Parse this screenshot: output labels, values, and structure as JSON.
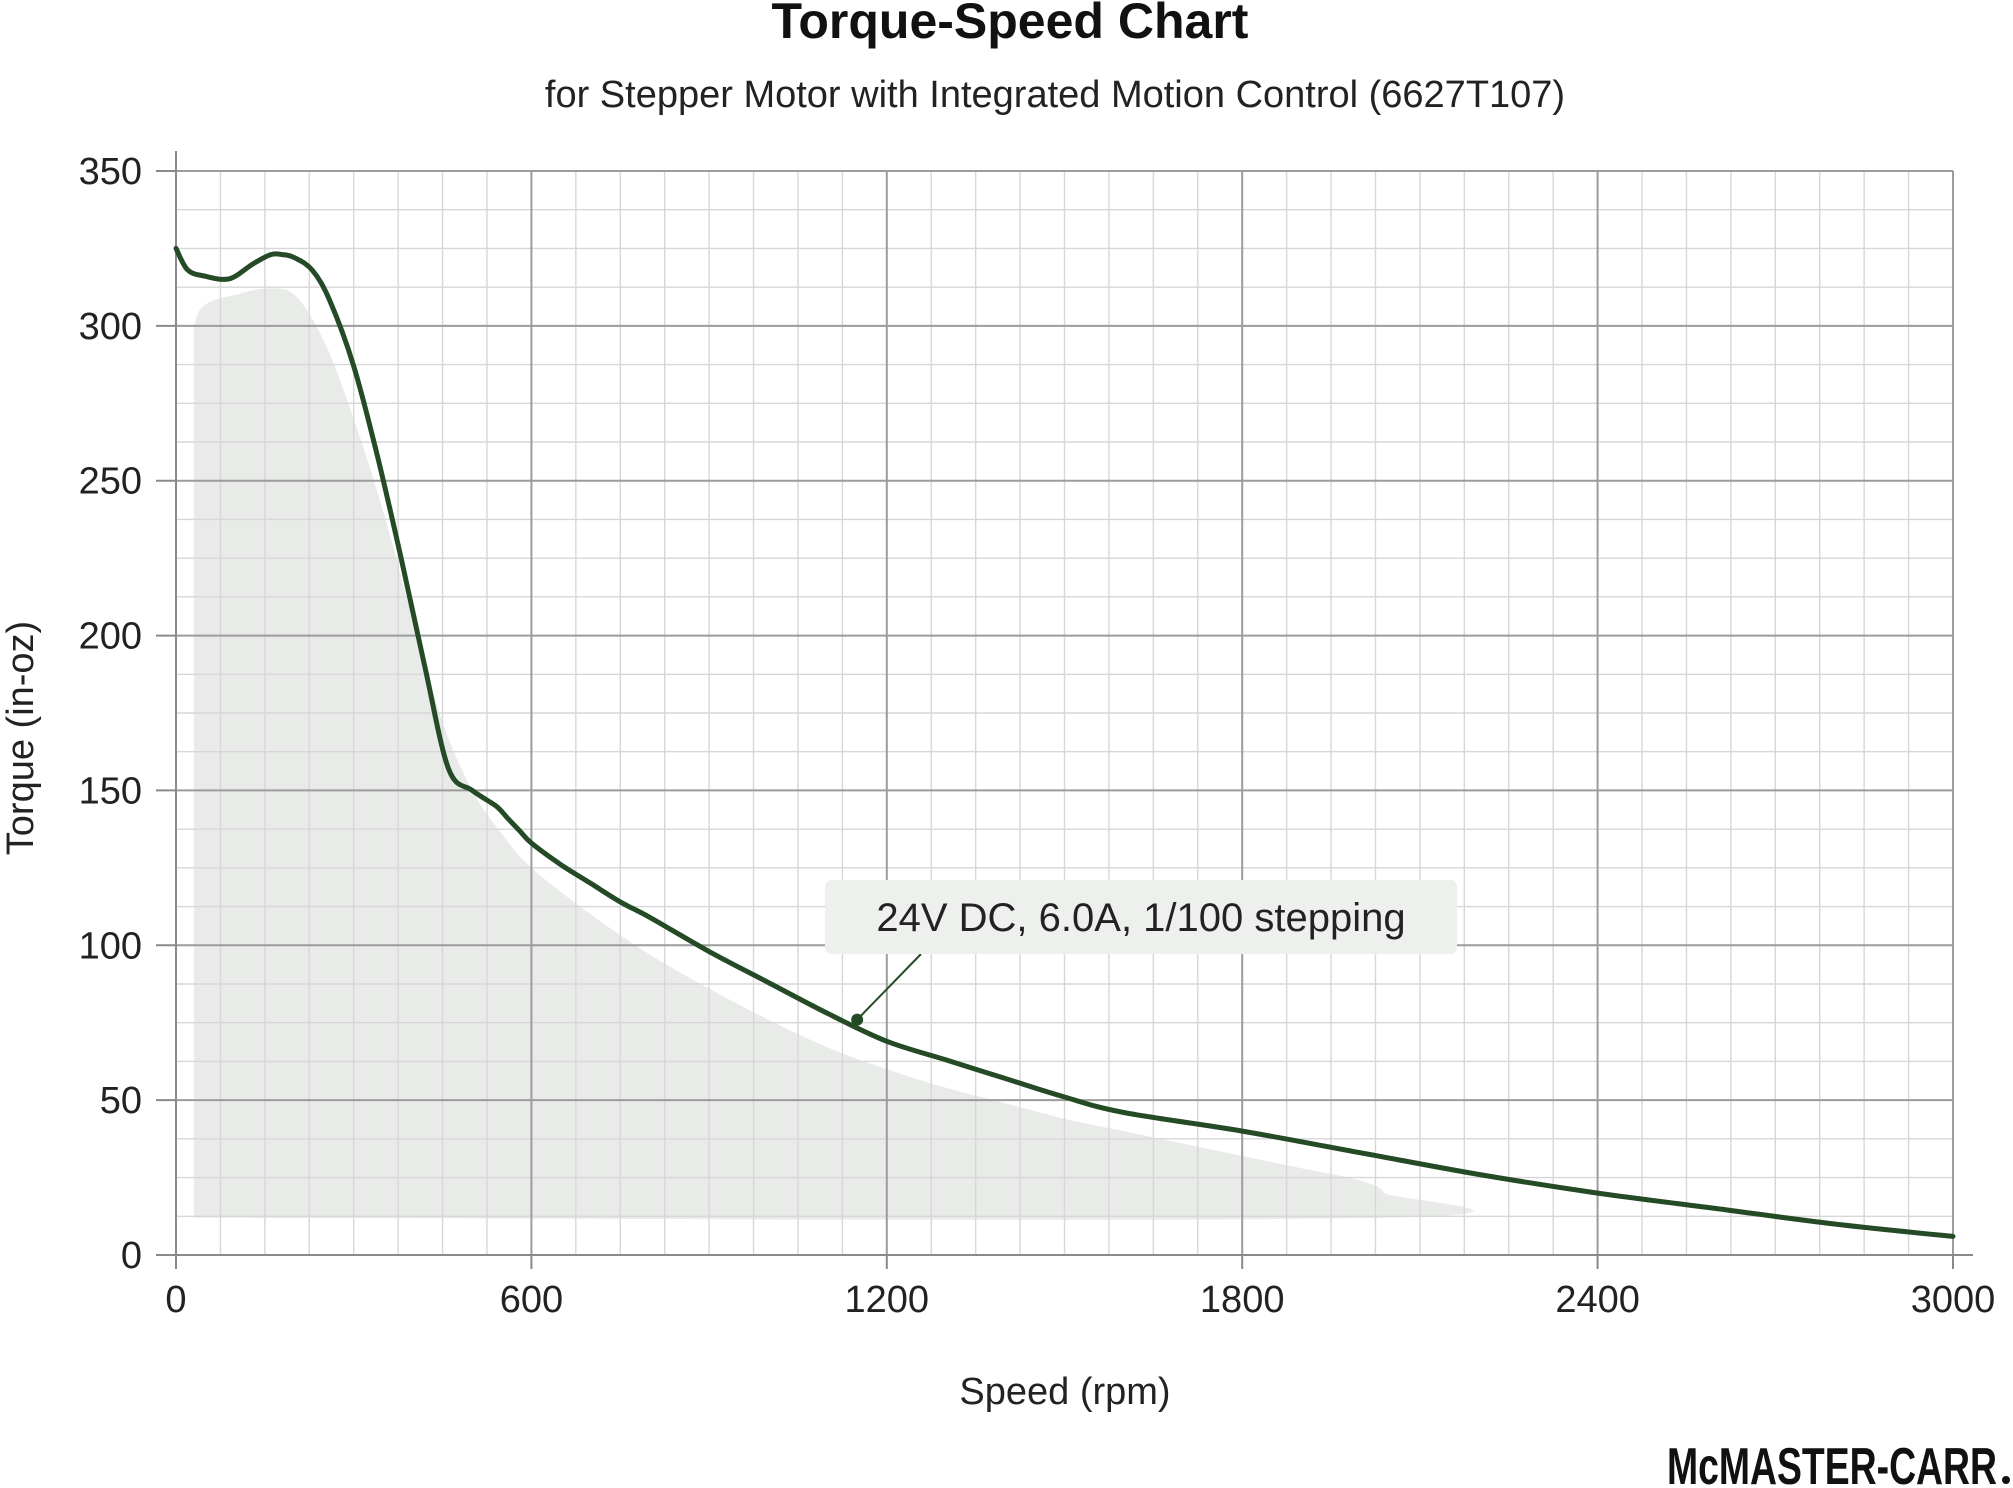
{
  "chart_data": {
    "type": "line",
    "title": "Torque-Speed Chart",
    "subtitle": "for Stepper Motor with Integrated Motion Control (6627T107)",
    "xlabel": "Speed (rpm)",
    "ylabel": "Torque (in-oz)",
    "xlim": [
      0,
      3000
    ],
    "ylim": [
      0,
      350
    ],
    "x_ticks": [
      0,
      600,
      1200,
      1800,
      2400,
      3000
    ],
    "y_ticks": [
      0,
      50,
      100,
      150,
      200,
      250,
      300,
      350
    ],
    "grid": true,
    "series": [
      {
        "name": "24V DC, 6.0A, 1/100 stepping",
        "color": "#244a26",
        "x": [
          0,
          20,
          50,
          80,
          100,
          130,
          160,
          180,
          200,
          230,
          260,
          300,
          340,
          380,
          420,
          460,
          500,
          540,
          560,
          580,
          600,
          650,
          700,
          750,
          800,
          900,
          1000,
          1100,
          1200,
          1300,
          1400,
          1500,
          1600,
          1800,
          2000,
          2200,
          2400,
          2600,
          2800,
          3000
        ],
        "y": [
          325,
          318,
          316,
          315,
          316,
          320,
          323,
          323,
          322,
          318,
          308,
          287,
          258,
          225,
          190,
          157,
          150,
          145,
          141,
          137,
          133,
          126,
          120,
          114,
          109,
          98,
          88,
          78,
          69,
          63,
          57,
          51,
          46,
          40,
          33,
          26,
          20,
          15,
          10,
          6
        ]
      }
    ],
    "annotations": [
      {
        "text": "24V DC, 6.0A, 1/100 stepping",
        "x": 1150,
        "y": 76
      }
    ],
    "shaded_region": {
      "color": "#e8ebe8",
      "x": [
        30,
        40,
        60,
        100,
        150,
        200,
        250,
        300,
        350,
        400,
        450,
        500,
        550,
        600,
        700,
        800,
        900,
        1000,
        1100,
        1200,
        1300,
        1400,
        1500,
        1600,
        1700,
        1800,
        1900,
        2000,
        2040,
        2040,
        30
      ],
      "y": [
        300,
        305,
        308,
        310,
        312,
        310,
        295,
        270,
        240,
        205,
        172,
        150,
        136,
        125,
        110,
        97,
        86,
        76,
        67,
        60,
        54,
        49,
        44,
        40,
        36,
        32,
        28,
        24,
        20,
        12,
        12
      ]
    }
  },
  "branding": {
    "logo_text": "McMASTER-CARR"
  }
}
